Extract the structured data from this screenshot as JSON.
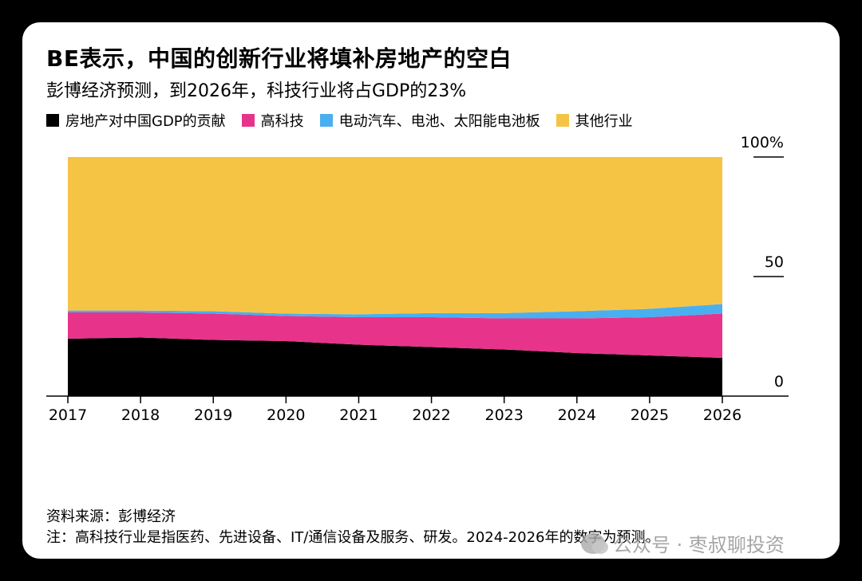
{
  "header": {
    "title": "BE表示，中国的创新行业将填补房地产的空白",
    "subtitle": "彭博经济预测，到2026年，科技行业将占GDP的23%"
  },
  "legend": [
    {
      "label": "房地产对中国GDP的贡献",
      "color": "#000000"
    },
    {
      "label": "高科技",
      "color": "#E8338A"
    },
    {
      "label": "电动汽车、电池、太阳能电池板",
      "color": "#4AAFF0"
    },
    {
      "label": "其他行业",
      "color": "#F5C445"
    }
  ],
  "chart_data": {
    "type": "area",
    "stacked": true,
    "x": [
      "2017",
      "2018",
      "2019",
      "2020",
      "2021",
      "2022",
      "2023",
      "2024",
      "2025",
      "2026"
    ],
    "series": [
      {
        "name": "房地产对中国GDP的贡献",
        "color": "#000000",
        "values": [
          24,
          24.5,
          23.5,
          23,
          21.5,
          20.5,
          19.5,
          18,
          17,
          16
        ]
      },
      {
        "name": "高科技",
        "color": "#E8338A",
        "values": [
          11,
          10.5,
          11,
          10.5,
          11.5,
          12.5,
          13,
          14.5,
          16,
          18.5
        ]
      },
      {
        "name": "电动汽车、电池、太阳能电池板",
        "color": "#4AAFF0",
        "values": [
          0.8,
          0.8,
          1,
          1,
          1.2,
          1.7,
          2.2,
          3,
          3.5,
          4
        ]
      },
      {
        "name": "其他行业",
        "color": "#F5C445",
        "values": [
          64.2,
          64.2,
          64.5,
          65.5,
          65.8,
          65.3,
          65.3,
          64.5,
          63.5,
          61.5
        ]
      }
    ],
    "yticks": [
      "100%",
      "50",
      "0"
    ],
    "ylim": [
      0,
      100
    ],
    "legend_position": "top-left",
    "grid": false
  },
  "footer": {
    "source": "资料来源：彭博经济",
    "note": "注：高科技行业是指医药、先进设备、IT/通信设备及服务、研发。2024-2026年的数字为预测。"
  },
  "watermark": {
    "text": "公众号 · 枣叔聊投资"
  }
}
